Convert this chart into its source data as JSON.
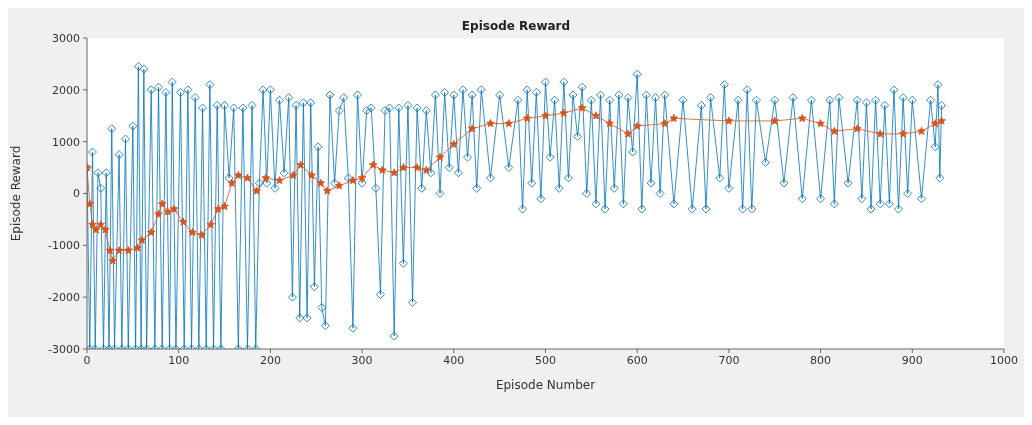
{
  "chart_data": {
    "type": "line",
    "title": "Episode Reward",
    "xlabel": "Episode Number",
    "ylabel": "Episode Reward",
    "xlim": [
      0,
      1000
    ],
    "xticks": [
      0,
      100,
      200,
      300,
      400,
      500,
      600,
      700,
      800,
      900,
      1000
    ],
    "ylim": [
      -3000,
      3000
    ],
    "yticks": [
      -3000,
      -2000,
      -1000,
      0,
      1000,
      2000,
      3000
    ],
    "grid": false,
    "series": [
      {
        "color": "#0072bd",
        "marker": "diamond",
        "x": [
          0,
          3,
          6,
          9,
          12,
          15,
          18,
          21,
          24,
          27,
          30,
          35,
          38,
          42,
          45,
          50,
          53,
          56,
          59,
          62,
          65,
          70,
          74,
          78,
          82,
          86,
          90,
          93,
          97,
          102,
          106,
          110,
          114,
          118,
          122,
          126,
          130,
          134,
          138,
          142,
          146,
          150,
          155,
          160,
          165,
          170,
          175,
          180,
          184,
          188,
          192,
          196,
          200,
          205,
          210,
          215,
          220,
          224,
          228,
          232,
          236,
          240,
          244,
          248,
          252,
          256,
          260,
          265,
          270,
          275,
          280,
          285,
          290,
          295,
          300,
          305,
          310,
          315,
          320,
          325,
          330,
          335,
          340,
          345,
          350,
          355,
          360,
          365,
          370,
          375,
          380,
          385,
          390,
          395,
          400,
          405,
          410,
          415,
          420,
          425,
          430,
          440,
          450,
          460,
          470,
          475,
          480,
          485,
          490,
          495,
          500,
          505,
          510,
          515,
          520,
          525,
          530,
          535,
          540,
          545,
          550,
          555,
          560,
          565,
          570,
          575,
          580,
          585,
          590,
          595,
          600,
          605,
          610,
          615,
          620,
          625,
          630,
          640,
          650,
          660,
          670,
          675,
          680,
          690,
          695,
          700,
          710,
          715,
          720,
          725,
          730,
          740,
          750,
          760,
          770,
          780,
          790,
          800,
          810,
          815,
          820,
          830,
          840,
          845,
          850,
          855,
          860,
          865,
          870,
          875,
          880,
          885,
          890,
          895,
          900,
          910,
          920,
          925,
          928,
          930,
          932
        ],
        "values": [
          500,
          -3000,
          800,
          -3000,
          400,
          100,
          -3000,
          400,
          -3000,
          1250,
          -3000,
          750,
          -3000,
          1050,
          -3000,
          1300,
          -3000,
          2450,
          -3000,
          2400,
          -3000,
          2000,
          -3000,
          2050,
          -3000,
          1950,
          -3000,
          2150,
          -3000,
          1950,
          -3000,
          2000,
          -3000,
          1850,
          -3000,
          1650,
          -3000,
          2100,
          -3000,
          1700,
          -3000,
          1700,
          300,
          1650,
          -3000,
          1650,
          -3000,
          1700,
          -3000,
          200,
          2000,
          200,
          2000,
          100,
          1800,
          400,
          1850,
          -2000,
          1700,
          -2400,
          1750,
          -2400,
          1750,
          -1800,
          900,
          -2200,
          -2550,
          1900,
          200,
          1600,
          1850,
          300,
          -2600,
          1900,
          200,
          1600,
          1650,
          100,
          -1950,
          1600,
          1650,
          -2750,
          1650,
          -1350,
          1700,
          -2100,
          1650,
          100,
          1600,
          400,
          1900,
          0,
          1950,
          500,
          1900,
          400,
          2000,
          700,
          1900,
          100,
          2000,
          300,
          1900,
          500,
          1800,
          -300,
          2000,
          200,
          1950,
          -100,
          2150,
          700,
          1800,
          100,
          2150,
          300,
          1900,
          1100,
          2050,
          0,
          1800,
          -200,
          1900,
          -300,
          1800,
          100,
          1900,
          -200,
          1850,
          800,
          2300,
          -300,
          1900,
          200,
          1850,
          0,
          1900,
          -200,
          1800,
          -300,
          1700,
          -300,
          1850,
          300,
          2100,
          100,
          1800,
          -300,
          2000,
          -300,
          1800,
          600,
          1800,
          200,
          1850,
          -100,
          1800,
          -100,
          1800,
          -200,
          1850,
          200,
          1800,
          -100,
          1750,
          -300,
          1800,
          -200,
          1700,
          -200,
          2000,
          -300,
          1850,
          0,
          1800,
          -100,
          1800,
          900,
          2100,
          300,
          1700
        ]
      },
      {
        "color": "#d95319",
        "marker": "star",
        "x": [
          0,
          3,
          6,
          10,
          15,
          20,
          25,
          28,
          35,
          45,
          55,
          60,
          70,
          78,
          82,
          88,
          95,
          105,
          115,
          125,
          135,
          143,
          150,
          158,
          165,
          175,
          185,
          195,
          210,
          225,
          233,
          245,
          255,
          262,
          275,
          290,
          300,
          312,
          322,
          335,
          345,
          360,
          370,
          385,
          400,
          420,
          440,
          460,
          480,
          500,
          520,
          540,
          555,
          570,
          590,
          600,
          630,
          640,
          700,
          750,
          780,
          800,
          815,
          840,
          865,
          890,
          910,
          925,
          932
        ],
        "values": [
          500,
          -200,
          -600,
          -700,
          -600,
          -700,
          -1100,
          -1300,
          -1100,
          -1100,
          -1050,
          -900,
          -750,
          -400,
          -200,
          -350,
          -300,
          -550,
          -750,
          -800,
          -600,
          -300,
          -250,
          200,
          350,
          300,
          50,
          300,
          250,
          350,
          550,
          350,
          200,
          50,
          150,
          250,
          300,
          550,
          450,
          400,
          500,
          500,
          450,
          700,
          950,
          1250,
          1350,
          1350,
          1450,
          1500,
          1550,
          1650,
          1500,
          1350,
          1150,
          1300,
          1350,
          1450,
          1400,
          1400,
          1450,
          1350,
          1200,
          1250,
          1150,
          1150,
          1200,
          1350,
          1400
        ]
      }
    ]
  }
}
